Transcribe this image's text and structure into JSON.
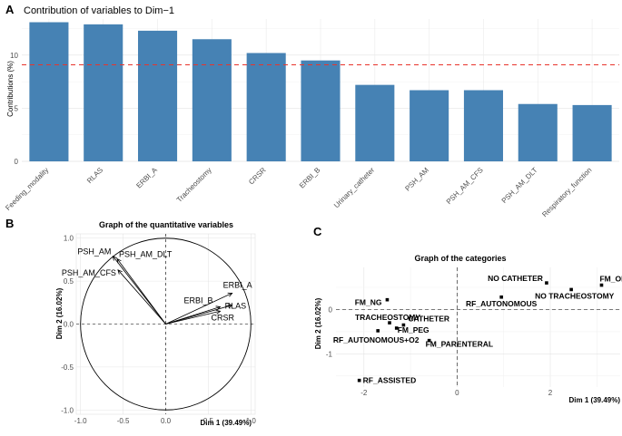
{
  "chart_data": [
    {
      "panel": "A",
      "type": "bar",
      "title": "Contribution of variables to Dim−1",
      "ylabel": "Contributions (%)",
      "xlabel": "",
      "categories": [
        "Feeding_modality",
        "RLAS",
        "ERBI_A",
        "Tracheostomy",
        "CRSR",
        "ERBI_B",
        "Urinary_catheter",
        "PSH_AM",
        "PSH_AM_CFS",
        "PSH_AM_DLT",
        "Respiratory_function"
      ],
      "values": [
        13.1,
        12.9,
        12.3,
        11.5,
        10.2,
        9.5,
        7.2,
        6.7,
        6.7,
        5.4,
        5.3
      ],
      "reference_line": 9.09,
      "ylim": [
        0,
        13.4
      ],
      "yticks": [
        "0",
        "5",
        "10"
      ],
      "bar_color": "#4682b4",
      "ref_color": "#e8342b"
    },
    {
      "panel": "B",
      "type": "scatter",
      "title": "Graph of the quantitative variables",
      "xlabel": "Dim 1 (39.49%)",
      "ylabel": "Dim 2 (16.02%)",
      "xlim": [
        -1.05,
        1.05
      ],
      "ylim": [
        -1.05,
        1.05
      ],
      "xticks": [
        "-1.0",
        "-0.5",
        "0.0",
        "0.5",
        "1.0"
      ],
      "yticks": [
        "-1.0",
        "-0.5",
        "0.0",
        "0.5",
        "1.0"
      ],
      "vectors": [
        {
          "name": "PSH_AM",
          "x": -0.62,
          "y": 0.79
        },
        {
          "name": "PSH_AM_DLT",
          "x": -0.57,
          "y": 0.76
        },
        {
          "name": "PSH_AM_CFS",
          "x": -0.56,
          "y": 0.63
        },
        {
          "name": "ERBI_A",
          "x": 0.78,
          "y": 0.36
        },
        {
          "name": "ERBI_B",
          "x": 0.64,
          "y": 0.2
        },
        {
          "name": "RLAS",
          "x": 0.78,
          "y": 0.22
        },
        {
          "name": "CRSR",
          "x": 0.64,
          "y": 0.15
        }
      ]
    },
    {
      "panel": "C",
      "type": "scatter",
      "title": "Graph of the categories",
      "xlabel": "Dim 1 (39.49%)",
      "ylabel": "Dim 2 (16.02%)",
      "xlim": [
        -2.6,
        3.5
      ],
      "ylim": [
        -1.75,
        0.95
      ],
      "xticks": [
        "-2",
        "0",
        "2"
      ],
      "yticks": [
        "-1",
        "0"
      ],
      "points": [
        {
          "name": "NO CATHETER",
          "x": 1.92,
          "y": 0.6
        },
        {
          "name": "FM_ORAL",
          "x": 3.1,
          "y": 0.55
        },
        {
          "name": "NO TRACHEOSTOMY",
          "x": 2.45,
          "y": 0.45
        },
        {
          "name": "RF_AUTONOMOUS",
          "x": 0.95,
          "y": 0.28
        },
        {
          "name": "FM_NG",
          "x": -1.5,
          "y": 0.22
        },
        {
          "name": "TRACHEOSTOMY",
          "x": -1.45,
          "y": -0.3
        },
        {
          "name": "CATHETER",
          "x": -1.15,
          "y": -0.35
        },
        {
          "name": "FM_PEG",
          "x": -1.3,
          "y": -0.42
        },
        {
          "name": "RF_AUTONOMOUS+O2",
          "x": -1.7,
          "y": -0.48
        },
        {
          "name": "FM_PARENTERAL",
          "x": -0.6,
          "y": -0.7
        },
        {
          "name": "RF_ASSISTED",
          "x": -2.1,
          "y": -1.6
        }
      ]
    }
  ]
}
